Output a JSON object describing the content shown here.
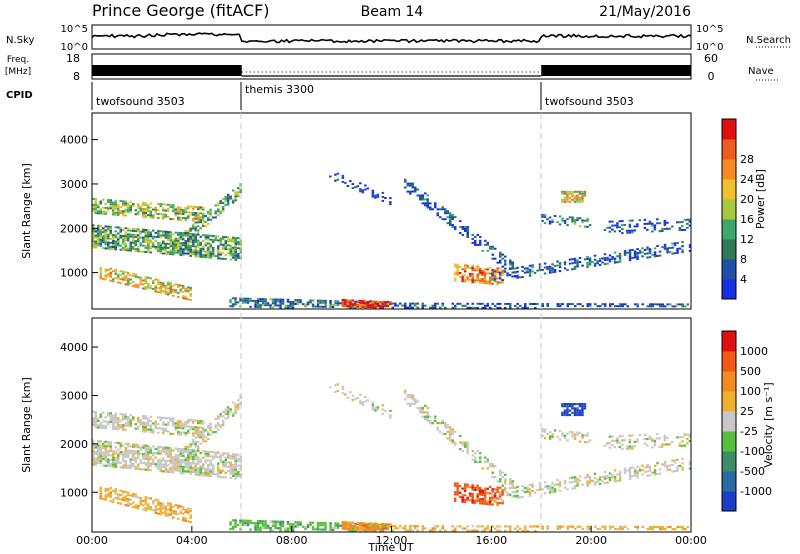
{
  "header": {
    "station": "Prince George (fitACF)",
    "beam": "Beam 14",
    "date": "21/May/2016"
  },
  "nsky_panel": {
    "left_label": "N.Sky",
    "left_ticks": [
      "10^5",
      "10^0"
    ],
    "right_ticks": [
      "10^5",
      "10^0"
    ],
    "right_label": "N.Search"
  },
  "freq_panel": {
    "left_label_1": "Freq.",
    "left_label_2": "[MHz]",
    "left_ticks": [
      "18",
      "8"
    ],
    "right_ticks": [
      "60",
      "0"
    ],
    "right_label": "Nave"
  },
  "cpid": {
    "label": "CPID",
    "segments": [
      {
        "name": "twofsound 3503",
        "start": 0,
        "end": 6
      },
      {
        "name": "themis 3300",
        "start": 6,
        "end": 18
      },
      {
        "name": "twofsound 3503",
        "start": 18,
        "end": 24
      }
    ]
  },
  "chart_data": [
    {
      "type": "heatmap",
      "variable": "Power",
      "ylabel": "Slant Range [km]",
      "colorbar_label": "Power [dB]",
      "ylim": [
        180,
        4600
      ],
      "yticks": [
        "1000",
        "2000",
        "3000",
        "4000"
      ],
      "colorbar_ticks": [
        "4",
        "8",
        "12",
        "16",
        "20",
        "24",
        "28"
      ],
      "colorbar_colors": [
        "#1530e0",
        "#1f4fa6",
        "#2f7a55",
        "#3ca86a",
        "#a8c83c",
        "#f0c030",
        "#f58a20",
        "#f05a1c",
        "#e01010"
      ]
    },
    {
      "type": "heatmap",
      "variable": "Velocity",
      "ylabel": "Slant Range [km]",
      "colorbar_label": "Velocity [m s⁻¹]",
      "ylim": [
        180,
        4600
      ],
      "yticks": [
        "1000",
        "2000",
        "3000",
        "4000"
      ],
      "colorbar_ticks": [
        "1000",
        "500",
        "100",
        "25",
        "-25",
        "-100",
        "-500",
        "-1000"
      ],
      "colorbar_colors": [
        "#1a3ec8",
        "#2a6aa0",
        "#3c8c6a",
        "#56c03a",
        "#c8c8c8",
        "#f0b030",
        "#f58a20",
        "#f05a14",
        "#e01010"
      ],
      "xlabel": "Time UT",
      "xticks": [
        "00:00",
        "04:00",
        "08:00",
        "12:00",
        "16:00",
        "20:00",
        "00:00"
      ]
    }
  ]
}
